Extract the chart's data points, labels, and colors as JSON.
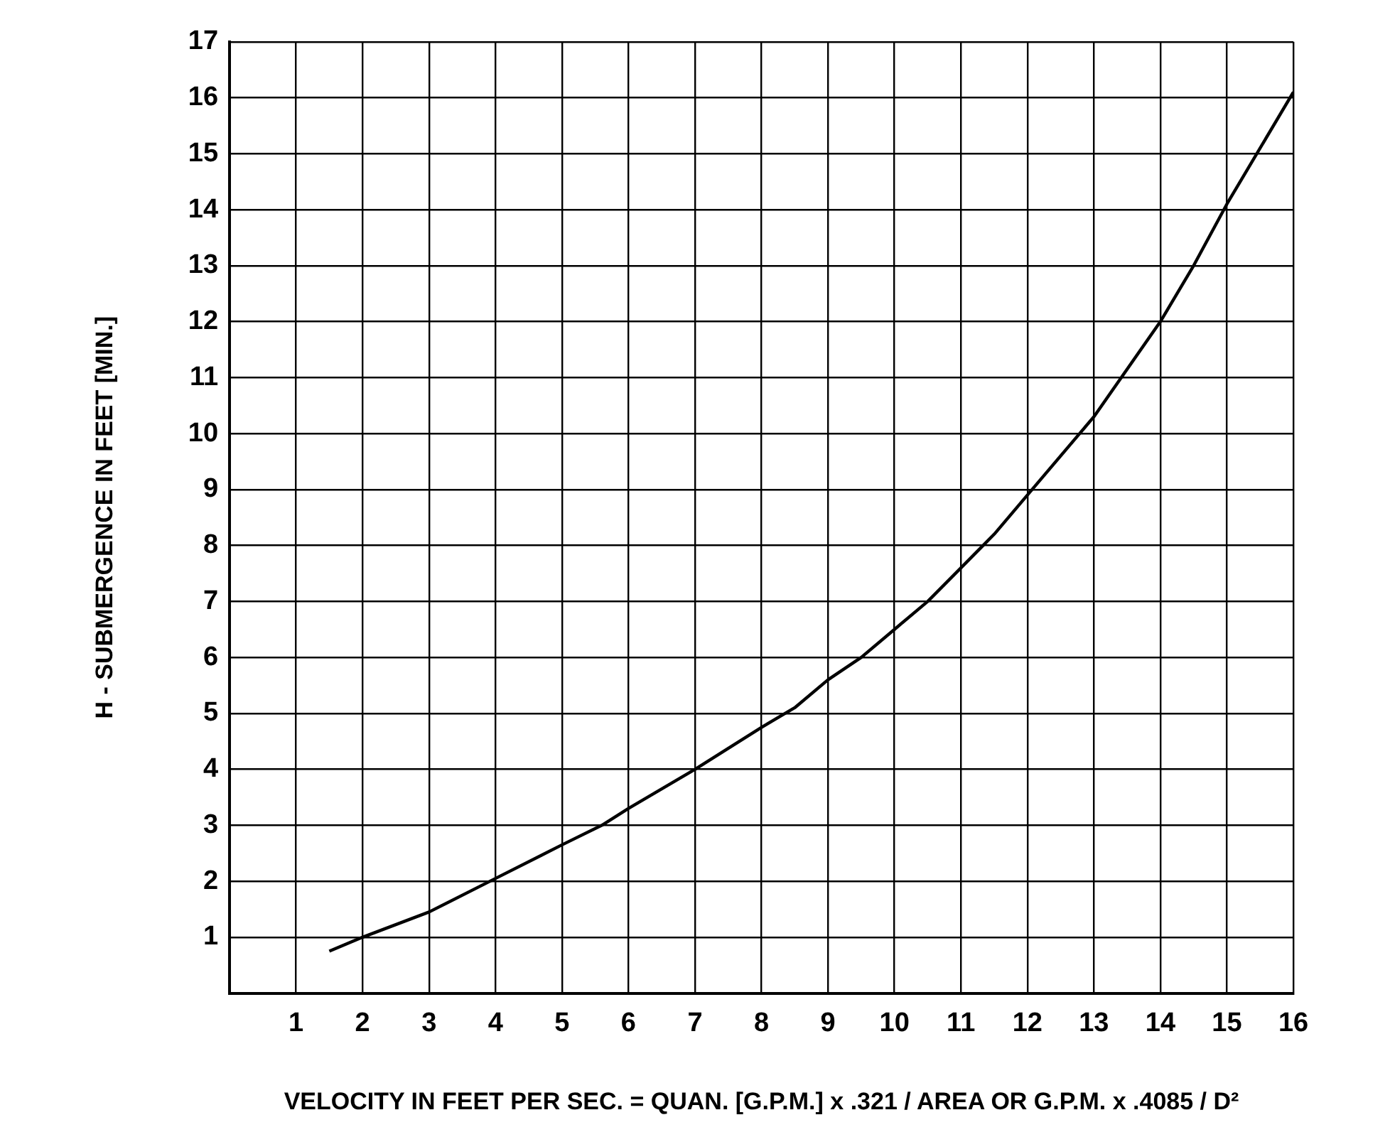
{
  "chart_data": {
    "type": "line",
    "xlabel": "VELOCITY IN FEET PER SEC. = QUAN. [G.P.M.] x .321 / AREA OR G.P.M. x .4085 / D²",
    "ylabel": "H - SUBMERGENCE IN FEET [MIN.]",
    "x": [
      1.5,
      2,
      3,
      4,
      5,
      5.6,
      6,
      7,
      8,
      8.5,
      9,
      9.5,
      10,
      10.5,
      11,
      11.5,
      12,
      13,
      14,
      14.5,
      15,
      16
    ],
    "series": [
      {
        "color": "#000000",
        "values": [
          0.75,
          1,
          1.45,
          2.05,
          2.65,
          3,
          3.3,
          4,
          4.75,
          5.1,
          5.6,
          6,
          6.5,
          7,
          7.6,
          8.2,
          8.9,
          10.3,
          12,
          13,
          14.1,
          16.1
        ]
      }
    ],
    "xlim": [
      0,
      16
    ],
    "ylim": [
      0,
      17
    ],
    "xticks": [
      1,
      2,
      3,
      4,
      5,
      6,
      7,
      8,
      9,
      10,
      11,
      12,
      13,
      14,
      15,
      16
    ],
    "yticks": [
      1,
      2,
      3,
      4,
      5,
      6,
      7,
      8,
      9,
      10,
      11,
      12,
      13,
      14,
      15,
      16,
      17
    ],
    "grid": true,
    "marker": "none",
    "line_style": "solid",
    "legend": false
  }
}
